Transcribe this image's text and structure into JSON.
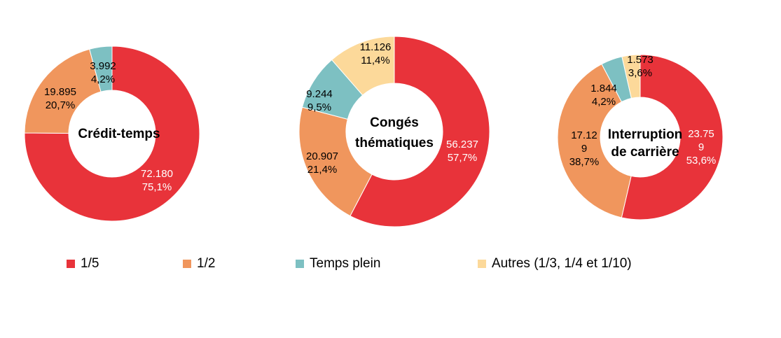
{
  "colors": {
    "one_fifth": "#E8333A",
    "half": "#F0965D",
    "full_time": "#7DC0C2",
    "others": "#FCD99A"
  },
  "legend": [
    {
      "label": "1/5",
      "color": "#E8333A"
    },
    {
      "label": "1/2",
      "color": "#F0965D"
    },
    {
      "label": "Temps plein",
      "color": "#7DC0C2"
    },
    {
      "label": "Autres (1/3, 1/4 et 1/10)",
      "color": "#FCD99A"
    }
  ],
  "chart_data": [
    {
      "type": "pie",
      "title": "Crédit-temps",
      "slices": [
        {
          "category": "1/5",
          "value": 72180,
          "value_label": "72.180",
          "pct_label": "75,1%"
        },
        {
          "category": "1/2",
          "value": 19895,
          "value_label": "19.895",
          "pct_label": "20,7%"
        },
        {
          "category": "Temps plein",
          "value": 3992,
          "value_label": "3.992",
          "pct_label": "4,2%"
        }
      ]
    },
    {
      "type": "pie",
      "title": "Congés thématiques",
      "title_lines": [
        "Congés",
        "thématiques"
      ],
      "slices": [
        {
          "category": "1/5",
          "value": 56237,
          "value_label": "56.237",
          "pct_label": "57,7%"
        },
        {
          "category": "1/2",
          "value": 20907,
          "value_label": "20.907",
          "pct_label": "21,4%"
        },
        {
          "category": "Temps plein",
          "value": 9244,
          "value_label": "9.244",
          "pct_label": "9,5%"
        },
        {
          "category": "Autres (1/3, 1/4 et 1/10)",
          "value": 11126,
          "value_label": "11.126",
          "pct_label": "11,4%"
        }
      ]
    },
    {
      "type": "pie",
      "title": "Interruption de carrière",
      "title_lines": [
        "Interruption",
        "de carrière"
      ],
      "slices": [
        {
          "category": "1/5",
          "value": 23759,
          "value_label_lines": [
            "23.75",
            "9"
          ],
          "pct_label": "53,6%"
        },
        {
          "category": "1/2",
          "value": 17129,
          "value_label_lines": [
            "17.12",
            "9"
          ],
          "pct_label": "38,7%"
        },
        {
          "category": "Temps plein",
          "value": 1844,
          "value_label": "1.844",
          "pct_label": "4,2%"
        },
        {
          "category": "Autres (1/3, 1/4 et 1/10)",
          "value": 1573,
          "value_label": "1.573",
          "pct_label": "3,6%"
        }
      ]
    }
  ]
}
